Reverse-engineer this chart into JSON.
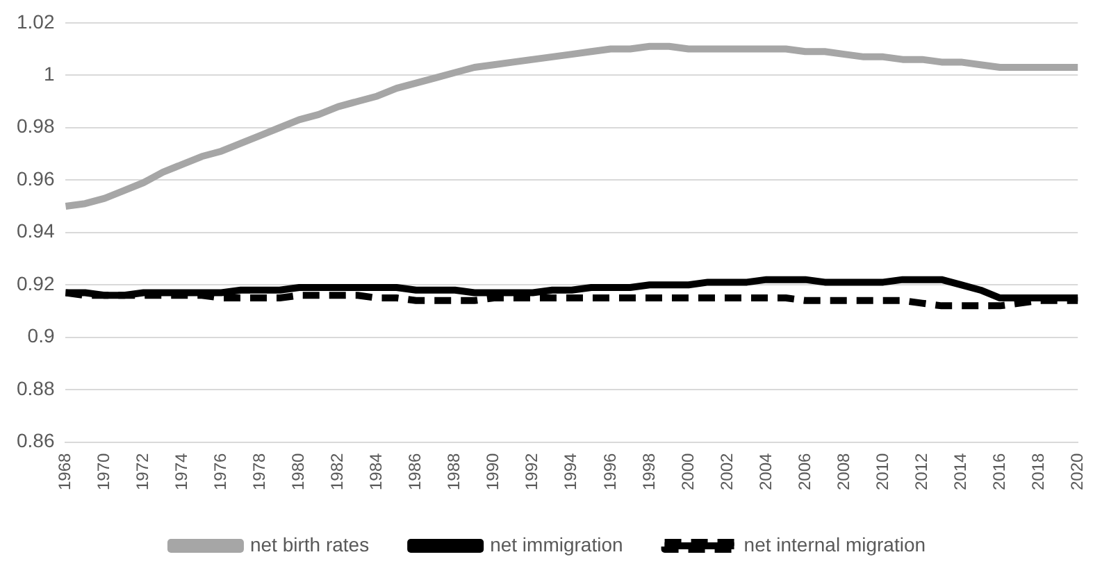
{
  "chart_data": {
    "type": "line",
    "categories": [
      "1968",
      null,
      "1970",
      null,
      "1972",
      null,
      "1974",
      null,
      "1976",
      null,
      "1978",
      null,
      "1980",
      null,
      "1982",
      null,
      "1984",
      null,
      "1986",
      null,
      "1988",
      null,
      "1990",
      null,
      "1992",
      null,
      "1994",
      null,
      "1996",
      null,
      "1998",
      null,
      "2000",
      null,
      "2002",
      null,
      "2004",
      null,
      "2006",
      null,
      "2008",
      null,
      "2010",
      null,
      "2012",
      null,
      "2014",
      null,
      "2016",
      null,
      "2018",
      null,
      "2020"
    ],
    "ylim": [
      0.86,
      1.02
    ],
    "yticks": [
      0.86,
      0.88,
      0.9,
      0.92,
      0.94,
      0.96,
      0.98,
      1,
      1.02
    ],
    "grid": "y",
    "legend": "bottom",
    "marker": "none",
    "series": [
      {
        "name": "net birth rates",
        "color": "#a6a6a6",
        "line_style": "solid",
        "values": [
          0.95,
          0.951,
          0.953,
          0.956,
          0.959,
          0.963,
          0.966,
          0.969,
          0.971,
          0.974,
          0.977,
          0.98,
          0.983,
          0.985,
          0.988,
          0.99,
          0.992,
          0.995,
          0.997,
          0.999,
          1.001,
          1.003,
          1.004,
          1.005,
          1.006,
          1.007,
          1.008,
          1.009,
          1.01,
          1.01,
          1.011,
          1.011,
          1.01,
          1.01,
          1.01,
          1.01,
          1.01,
          1.01,
          1.009,
          1.009,
          1.008,
          1.007,
          1.007,
          1.006,
          1.006,
          1.005,
          1.005,
          1.004,
          1.003,
          1.003,
          1.003,
          1.003,
          1.003
        ]
      },
      {
        "name": "net immigration",
        "color": "#000000",
        "line_style": "solid",
        "values": [
          0.917,
          0.917,
          0.916,
          0.916,
          0.917,
          0.917,
          0.917,
          0.917,
          0.917,
          0.918,
          0.918,
          0.918,
          0.919,
          0.919,
          0.919,
          0.919,
          0.919,
          0.919,
          0.918,
          0.918,
          0.918,
          0.917,
          0.917,
          0.917,
          0.917,
          0.918,
          0.918,
          0.919,
          0.919,
          0.919,
          0.92,
          0.92,
          0.92,
          0.921,
          0.921,
          0.921,
          0.922,
          0.922,
          0.922,
          0.921,
          0.921,
          0.921,
          0.921,
          0.922,
          0.922,
          0.922,
          0.92,
          0.918,
          0.915,
          0.915,
          0.915,
          0.915,
          0.915
        ]
      },
      {
        "name": "net internal migration",
        "color": "#000000",
        "line_style": "dashed",
        "values": [
          0.917,
          0.916,
          0.916,
          0.916,
          0.916,
          0.916,
          0.916,
          0.916,
          0.915,
          0.915,
          0.915,
          0.915,
          0.916,
          0.916,
          0.916,
          0.916,
          0.915,
          0.915,
          0.914,
          0.914,
          0.914,
          0.914,
          0.915,
          0.915,
          0.915,
          0.915,
          0.915,
          0.915,
          0.915,
          0.915,
          0.915,
          0.915,
          0.915,
          0.915,
          0.915,
          0.915,
          0.915,
          0.915,
          0.914,
          0.914,
          0.914,
          0.914,
          0.914,
          0.914,
          0.913,
          0.912,
          0.912,
          0.912,
          0.912,
          0.913,
          0.914,
          0.914,
          0.914
        ]
      }
    ]
  }
}
